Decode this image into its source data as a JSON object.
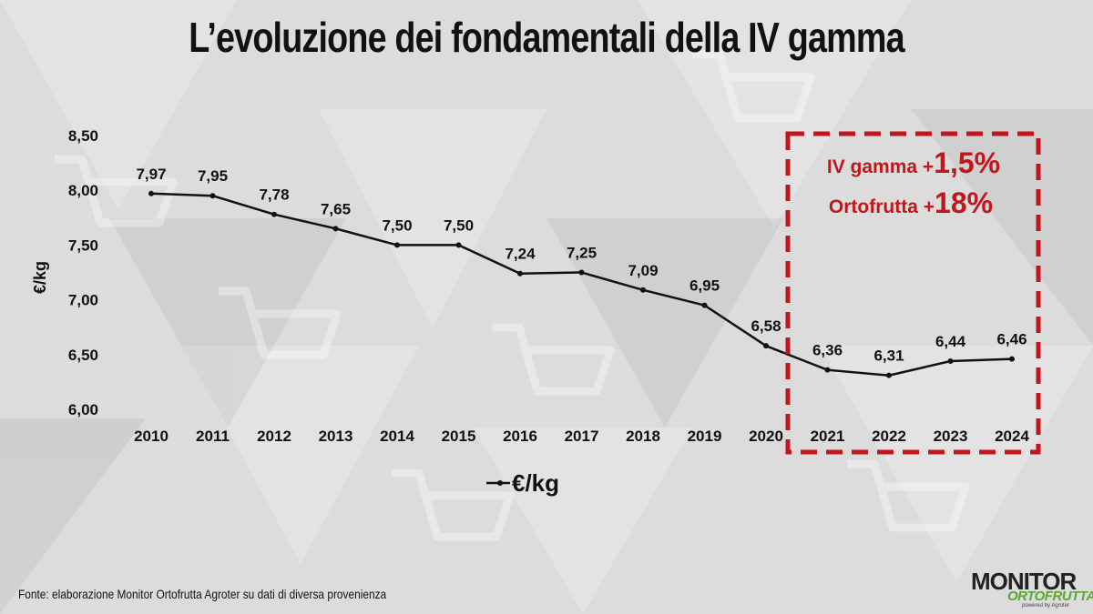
{
  "title": "L’evoluzione dei fondamentali della IV gamma",
  "source": "Fonte: elaborazione Monitor Ortofrutta Agroter su dati di diversa provenienza",
  "logo": {
    "line1": "MONITOR",
    "line2": "ORTOFRUTTA",
    "line3": "powered by Agroter"
  },
  "callout": {
    "line1_label": "IV gamma +",
    "line1_value": "1,5%",
    "line2_label": "Ortofrutta +",
    "line2_value": "18%",
    "color": "#c0161c"
  },
  "chart_data": {
    "type": "line",
    "x": [
      "2010",
      "2011",
      "2012",
      "2013",
      "2014",
      "2015",
      "2016",
      "2017",
      "2018",
      "2019",
      "2020",
      "2021",
      "2022",
      "2023",
      "2024"
    ],
    "series": [
      {
        "name": "€/kg",
        "values": [
          7.97,
          7.95,
          7.78,
          7.65,
          7.5,
          7.5,
          7.24,
          7.25,
          7.09,
          6.95,
          6.58,
          6.36,
          6.31,
          6.44,
          6.46
        ],
        "labels": [
          "7,97",
          "7,95",
          "7,78",
          "7,65",
          "7,50",
          "7,50",
          "7,24",
          "7,25",
          "7,09",
          "6,95",
          "6,58",
          "6,36",
          "6,31",
          "6,44",
          "6,46"
        ]
      }
    ],
    "ylabel": "€/kg",
    "xlabel": "",
    "ylim": [
      6.0,
      8.5
    ],
    "yticks": [
      "6,00",
      "6,50",
      "7,00",
      "7,50",
      "8,00",
      "8,50"
    ],
    "grid": false,
    "legend": "bottom-left",
    "line_color": "#111111"
  }
}
